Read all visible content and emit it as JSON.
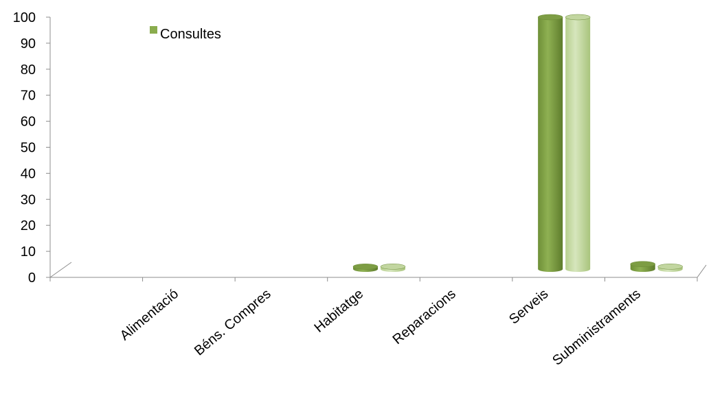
{
  "chart_data": {
    "type": "bar",
    "title": "",
    "xlabel": "",
    "ylabel": "",
    "ylim": [
      0,
      100
    ],
    "y_ticks": [
      "0",
      "10",
      "20",
      "30",
      "40",
      "50",
      "60",
      "70",
      "80",
      "90",
      "100"
    ],
    "categories": [
      "Alimentació",
      "Béns. Compres",
      "Habitatge",
      "Reparacions",
      "Serveis",
      "Subministraments"
    ],
    "series": [
      {
        "name": "Consultes",
        "values": [
          0,
          0,
          1,
          0,
          100,
          2
        ],
        "color": "#8aac4e"
      },
      {
        "name": "",
        "values": [
          0,
          0,
          1,
          0,
          100,
          1
        ],
        "color": "#c6d9a6"
      }
    ],
    "legend": {
      "label": "Consultes",
      "placement": "top-left",
      "color": "#8aac4e"
    },
    "grid": false,
    "style": "3d-cylinder"
  }
}
